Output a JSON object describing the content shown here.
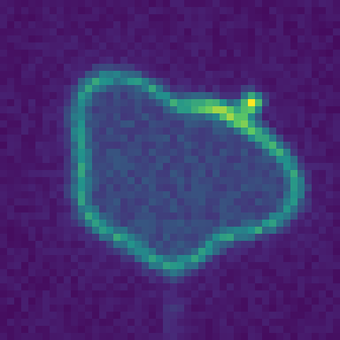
{
  "image": {
    "kind": "cell fluorescence heatmap",
    "colormap": "viridis",
    "colors": {
      "background": "#440154",
      "low": "#482878",
      "mid": "#21918c",
      "high": "#fde725"
    },
    "grid": {
      "cols": 48,
      "rows": 48
    }
  }
}
